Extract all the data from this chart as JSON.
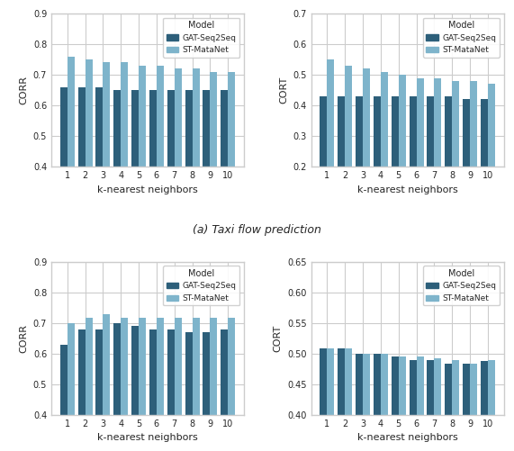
{
  "k_neighbors": [
    1,
    2,
    3,
    4,
    5,
    6,
    7,
    8,
    9,
    10
  ],
  "taxi_corr_dark": [
    0.66,
    0.66,
    0.66,
    0.65,
    0.65,
    0.65,
    0.65,
    0.65,
    0.65,
    0.65
  ],
  "taxi_corr_light": [
    0.76,
    0.75,
    0.74,
    0.74,
    0.73,
    0.73,
    0.72,
    0.72,
    0.71,
    0.71
  ],
  "taxi_cort_dark": [
    0.43,
    0.43,
    0.43,
    0.43,
    0.43,
    0.43,
    0.43,
    0.43,
    0.42,
    0.42
  ],
  "taxi_cort_light": [
    0.55,
    0.53,
    0.52,
    0.51,
    0.5,
    0.49,
    0.49,
    0.48,
    0.48,
    0.47
  ],
  "bike_corr_dark": [
    0.63,
    0.678,
    0.678,
    0.7,
    0.69,
    0.678,
    0.678,
    0.67,
    0.67,
    0.678
  ],
  "bike_corr_light": [
    0.7,
    0.718,
    0.73,
    0.718,
    0.718,
    0.718,
    0.718,
    0.718,
    0.718,
    0.718
  ],
  "bike_cort_dark": [
    0.508,
    0.508,
    0.5,
    0.5,
    0.495,
    0.495,
    0.49,
    0.483,
    0.483,
    0.488
  ],
  "bike_cort_light": [
    0.508,
    0.508,
    0.5,
    0.5,
    0.495,
    0.495,
    0.49,
    0.483,
    0.483,
    0.488
  ],
  "color_dark": "#2d5f7a",
  "color_light": "#7eb4cb",
  "bar_width": 0.4,
  "legend_title": "Model",
  "label_dark": "GAT-Seq2Seq",
  "label_light": "ST-MataNet",
  "xlabel": "k-nearest neighbors",
  "ylabel_corr": "CORR",
  "ylabel_cort": "CORT",
  "title_taxi": "(a) Taxi flow prediction",
  "taxi_corr_ylim": [
    0.4,
    0.9
  ],
  "taxi_corr_yticks": [
    0.4,
    0.5,
    0.6,
    0.7,
    0.8,
    0.9
  ],
  "taxi_cort_ylim": [
    0.2,
    0.7
  ],
  "taxi_cort_yticks": [
    0.2,
    0.3,
    0.4,
    0.5,
    0.6,
    0.7
  ],
  "bike_corr_ylim": [
    0.4,
    0.9
  ],
  "bike_corr_yticks": [
    0.4,
    0.5,
    0.6,
    0.7,
    0.8,
    0.9
  ],
  "bike_cort_ylim": [
    0.4,
    0.65
  ],
  "bike_cort_yticks": [
    0.4,
    0.45,
    0.5,
    0.55,
    0.6,
    0.65
  ],
  "bike_cort_dark2": [
    0.508,
    0.508,
    0.5,
    0.5,
    0.495,
    0.49,
    0.49,
    0.483,
    0.483,
    0.488
  ],
  "bike_cort_light2": [
    0.508,
    0.508,
    0.5,
    0.5,
    0.495,
    0.495,
    0.492,
    0.49,
    0.483,
    0.488
  ]
}
